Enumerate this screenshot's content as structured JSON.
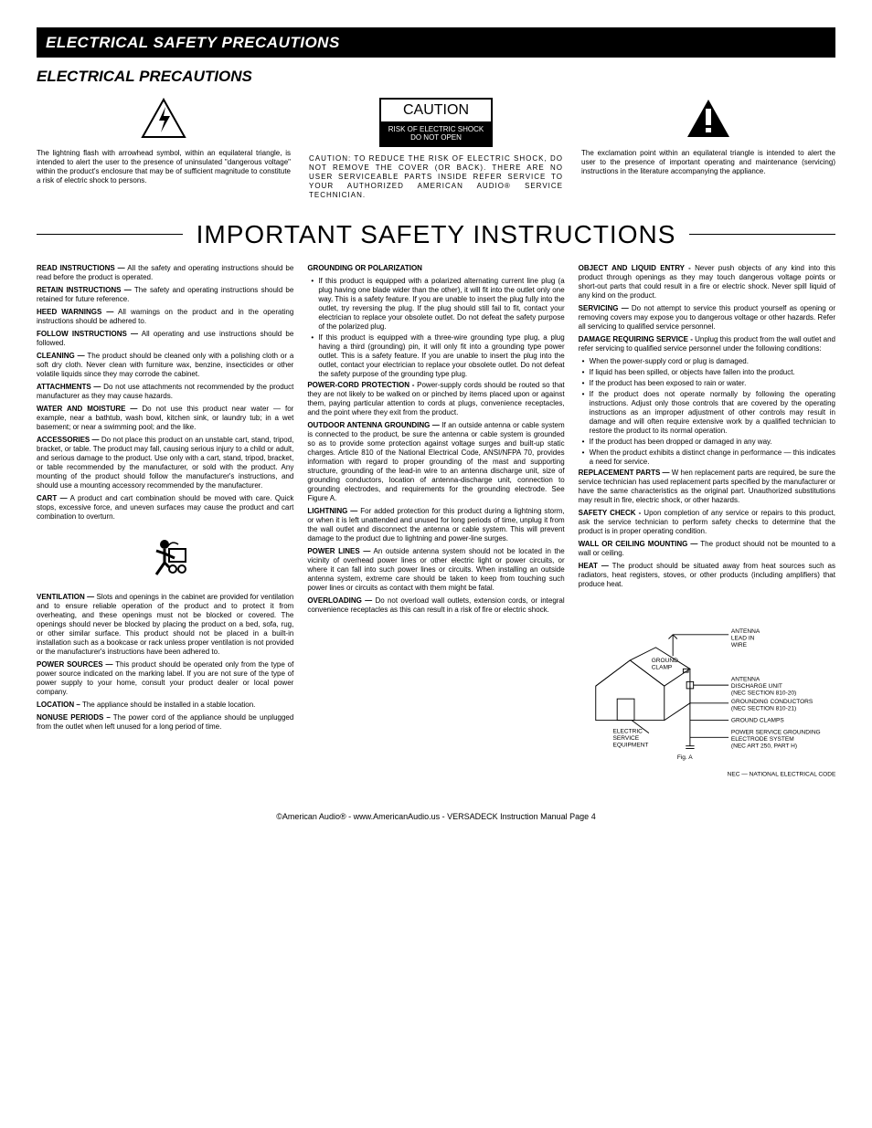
{
  "header_bar": "ELECTRICAL SAFETY PRECAUTIONS",
  "subheader": "ELECTRICAL PRECAUTIONS",
  "lightning_desc": "The lightning flash with arrowhead symbol, within an equilateral triangle, is intended to alert the user to the presence of uninsulated \"dangerous voltage\" within the product's enclosure that may be of sufficient magnitude to constitute a risk of electric shock to persons.",
  "caution_title": "CAUTION",
  "caution_body_1": "RISK OF ELECTRIC SHOCK",
  "caution_body_2": "DO NOT OPEN",
  "caution_para": "CAUTION: TO REDUCE THE RISK OF ELECTRIC SHOCK, DO NOT REMOVE THE COVER (OR BACK). THERE ARE NO USER SERVICEABLE PARTS INSIDE REFER SERVICE TO YOUR AUTHORIZED AMERICAN AUDIO® SERVICE TECHNICIAN.",
  "exclaim_desc": "The exclamation point within an equilateral triangle is intended to alert the user to the presence of important operating and maintenance (servicing) instructions in the literature accompanying the appliance.",
  "big_title": "IMPORTANT SAFETY INSTRUCTIONS",
  "col1": [
    {
      "h": "READ INSTRUCTIONS —",
      "b": "All the safety and operating instructions should be read before the product is operated."
    },
    {
      "h": "RETAIN INSTRUCTIONS —",
      "b": "The safety and operating instructions should be retained for future reference."
    },
    {
      "h": "HEED WARNINGS —",
      "b": "All warnings on the product and in the operating instructions should be adhered to."
    },
    {
      "h": "FOLLOW INSTRUCTIONS —",
      "b": "All operating and use instructions should be followed."
    },
    {
      "h": "CLEANING —",
      "b": "The product should be cleaned only with a polishing cloth or a soft dry cloth. Never clean with furniture wax, benzine, insecticides or other volatile liquids since they may corrode the cabinet."
    },
    {
      "h": "ATTACHMENTS —",
      "b": "Do not use attachments not recommended by the product manufacturer as they may cause hazards."
    },
    {
      "h": "WATER AND MOISTURE —",
      "b": "Do not use this product near water — for example, near a bathtub, wash bowl, kitchen sink, or laundry tub; in a wet basement; or near a swimming pool; and the like."
    },
    {
      "h": "ACCESSORIES —",
      "b": "Do not place this product on an unstable cart, stand, tripod, bracket, or table. The product may fall, causing serious injury to a child or adult, and serious damage to the product. Use only with a cart, stand, tripod, bracket, or table recommended by the manufacturer, or sold with the product. Any mounting of the product should follow the manufacturer's instructions, and should use a mounting accessory recommended by the manufacturer."
    },
    {
      "h": "CART —",
      "b": "A product and cart combination should be moved with care. Quick stops, excessive force, and uneven surfaces may cause the product and cart combination to overturn."
    },
    {
      "h": "VENTILATION —",
      "b": "Slots and openings in the cabinet are provided for ventilation and to ensure reliable operation of the product and to protect it from overheating, and these openings must not be blocked or covered. The openings should never be blocked by placing the product on a bed, sofa, rug, or other similar surface. This product should not be placed in a built-in installation such as a bookcase or rack unless proper ventilation is not provided or the manufacturer's instructions have been adhered to."
    },
    {
      "h": "POWER SOURCES —",
      "b": "This product should be operated only from the type of power source indicated on the marking label. If you are not sure of the type of power supply to your home, consult your product dealer or local power company."
    },
    {
      "h": "LOCATION –",
      "b": "The appliance should be installed in a stable location."
    },
    {
      "h": "NONUSE PERIODS –",
      "b": "The power cord of the appliance should be unplugged from the outlet when left unused for a long period of time."
    }
  ],
  "col2_h1": "GROUNDING OR POLARIZATION",
  "col2_b1": "If this product is equipped with a polarized alternating current line plug (a plug having one blade wider than the other), it will fit into the outlet only one way. This is a safety feature. If you are unable to insert the plug fully into the outlet, try reversing the plug. If the plug should still fail to fit, contact your electrician to replace your obsolete outlet. Do not defeat the safety purpose of the polarized plug.",
  "col2_b2": "If this product is equipped with a three-wire grounding type plug, a plug having a third (grounding) pin, it will only fit into a grounding type power outlet. This is a safety feature. If you are unable to insert the plug into the outlet, contact your electrician to replace your obsolete outlet. Do not defeat the safety purpose of the grounding type plug.",
  "col2_items": [
    {
      "h": "POWER-CORD PROTECTION -",
      "b": "Power-supply cords should be routed so that they are not likely to be walked on or pinched by items placed upon or against them, paying particular attention to cords at plugs, convenience receptacles, and the point where they exit from the product."
    },
    {
      "h": "OUTDOOR ANTENNA GROUNDING —",
      "b": "If an outside antenna or cable system is connected to the product, be sure the antenna or cable system is grounded so as to provide some protection against voltage surges and built-up static charges. Article 810 of the National Electrical Code, ANSI/NFPA 70, provides information with regard to proper grounding of the mast and supporting structure, grounding of the lead-in wire to an antenna discharge unit, size of grounding conductors, location of antenna-discharge unit, connection to grounding electrodes, and requirements for the grounding electrode. See Figure A."
    },
    {
      "h": "LIGHTNING —",
      "b": "For added protection for this product during a lightning storm, or when it is left unattended and unused for long periods of time, unplug it from the wall outlet and disconnect the antenna or cable system. This will prevent damage to the product due to lightning and power-line surges."
    },
    {
      "h": "POWER LINES —",
      "b": "An outside antenna system should not be located in the vicinity of overhead power lines or other electric light or power circuits, or where it can fall into such power lines or circuits. When installing an outside antenna system, extreme care should be taken to keep from touching such power lines or circuits as contact with them might be fatal."
    },
    {
      "h": "OVERLOADING —",
      "b": "Do not overload wall outlets, extension cords, or integral convenience receptacles as this can result in a risk of fire or electric shock."
    }
  ],
  "col3_items1": [
    {
      "h": "OBJECT AND LIQUID ENTRY -",
      "b": "Never push objects of any kind into this product through openings as they may touch dangerous voltage points or short-out parts that could result in a fire or electric shock. Never spill liquid of any kind on the product."
    },
    {
      "h": "SERVICING —",
      "b": "Do not attempt to service this product yourself as opening or removing covers may expose you to dangerous voltage or other hazards. Refer all servicing to qualified service personnel."
    },
    {
      "h": "DAMAGE REQUIRING SERVICE -",
      "b": "Unplug this product from the wall outlet and refer servicing to qualified service personnel under the following conditions:"
    }
  ],
  "col3_bullets": [
    "When the power-supply cord or plug is damaged.",
    "If liquid has been spilled, or objects have fallen into the product.",
    "If the product has been exposed to rain or water.",
    "If the product does not operate normally by following the operating instructions. Adjust only those controls that are covered by the operating instructions as an improper adjustment of other controls may result in damage and will often require extensive work by a qualified technician to restore the product to its normal operation.",
    "If the product has been dropped or damaged in any way.",
    "When the product exhibits a distinct change in performance — this indicates a need for service."
  ],
  "col3_items2": [
    {
      "h": "REPLACEMENT PARTS —",
      "b": "W hen replacement parts are required, be sure the service technician has used replacement parts specified by the manufacturer or have the same characteristics as the original part. Unauthorized substitutions may result in fire, electric shock, or other hazards."
    },
    {
      "h": "SAFETY CHECK -",
      "b": "Upon completion of any service or repairs to this product, ask the service technician to perform safety checks to determine that the product is in proper operating condition."
    },
    {
      "h": "WALL OR CEILING MOUNTING —",
      "b": "The product should not be mounted to a wall or ceiling."
    },
    {
      "h": "HEAT —",
      "b": "The product should be situated away from heat sources such as radiators, heat registers, stoves, or other products (including amplifiers) that produce heat."
    }
  ],
  "fig_labels": {
    "antenna_lead": "ANTENNA\nLEAD IN\nWIRE",
    "ground_clamp": "GROUND\nCLAMP",
    "discharge": "ANTENNA\nDISCHARGE UNIT\n(NEC SECTION 810-20)",
    "conductors": "GROUNDING CONDUCTORS\n(NEC SECTION 810-21)",
    "clamps": "GROUND CLAMPS",
    "power_service": "POWER SERVICE GROUNDING\nELECTRODE SYSTEM\n(NEC ART 250, PART H)",
    "electric": "ELECTRIC\nSERVICE\nEQUIPMENT",
    "fig": "Fig. A",
    "nec": "NEC — NATIONAL ELECTRICAL CODE"
  },
  "footer": "©American Audio®   -   www.AmericanAudio.us   -   VERSADECK Instruction Manual Page 4"
}
